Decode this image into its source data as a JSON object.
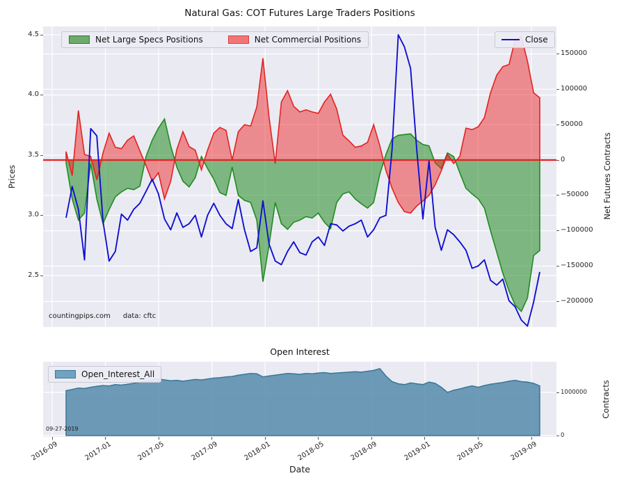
{
  "accent_colors": {
    "specs_fill": "rgba(34,139,34,0.55)",
    "specs_edge": "#1f8c1f",
    "commercials_fill": "rgba(235,44,44,0.50)",
    "commercials_edge": "#e32222",
    "zero_line": "#e32222",
    "close_line": "#1010d0",
    "oi_fill": "rgba(70,130,165,0.78)",
    "oi_edge": "#3a7699",
    "axes_background": "#eaeaf2",
    "grid": "#ffffff"
  },
  "chart_data": [
    {
      "type": "area",
      "title": "Natural Gas: COT Futures Large Traders Positions",
      "xlabel": "Date",
      "ylabel_left": "Prices",
      "ylabel_right": "Net Futures Contracts",
      "watermark": "countingpips.com",
      "source": "data: cftc",
      "legend_position": "upper left / upper right",
      "grid": true,
      "x_start_year": 2016.754,
      "x_end_year": 2019.719,
      "x_tick_labels": [
        "2016-09",
        "2017-01",
        "2017-05",
        "2017-09",
        "2018-01",
        "2018-05",
        "2018-09",
        "2019-01",
        "2019-05",
        "2019-09"
      ],
      "x_tick_years": [
        2016.6667,
        2017.0,
        2017.3333,
        2017.6667,
        2018.0,
        2018.3333,
        2018.6667,
        2019.0,
        2019.3333,
        2019.6667
      ],
      "ylim_left": [
        2.07,
        4.57
      ],
      "ylim_right": [
        -236000,
        189000
      ],
      "y_ticks_left": [
        4.5,
        4.0,
        3.5,
        3.0,
        2.5
      ],
      "y_tick_labels_left": [
        "4.5",
        "4.0",
        "3.5",
        "3.0",
        "2.5"
      ],
      "y_ticks_right": [
        150000,
        100000,
        50000,
        0,
        -50000,
        -100000,
        -150000,
        -200000
      ],
      "y_tick_labels_right": [
        "150000",
        "100000",
        "50000",
        "0",
        "−50000",
        "−100000",
        "−150000",
        "−200000"
      ],
      "series": [
        {
          "name": "Net Large Specs Positions",
          "type": "area",
          "axis": "right",
          "color": "green",
          "values": [
            -4000,
            -55000,
            -85000,
            -75000,
            -5000,
            -55000,
            -90000,
            -70000,
            -52000,
            -45000,
            -40000,
            -42000,
            -37000,
            5000,
            28000,
            45000,
            58000,
            20000,
            -10000,
            -30000,
            -38000,
            -25000,
            5000,
            -12000,
            -27000,
            -46000,
            -50000,
            -10000,
            -50000,
            -57000,
            -60000,
            -85000,
            -172000,
            -120000,
            -60000,
            -90000,
            -98000,
            -88000,
            -85000,
            -80000,
            -82000,
            -75000,
            -88000,
            -97000,
            -60000,
            -48000,
            -45000,
            -55000,
            -62000,
            -68000,
            -60000,
            -20000,
            8000,
            30000,
            35000,
            36000,
            37000,
            28000,
            22000,
            20000,
            -4000,
            -12000,
            10000,
            5000,
            -18000,
            -40000,
            -48000,
            -55000,
            -68000,
            -100000,
            -130000,
            -160000,
            -185000,
            -205000,
            -214000,
            -195000,
            -135000,
            -128000
          ]
        },
        {
          "name": "Net Commercial Positions",
          "type": "area",
          "axis": "right",
          "color": "red",
          "values": [
            12000,
            -22000,
            70000,
            8000,
            5000,
            -28000,
            10000,
            38000,
            18000,
            16000,
            28000,
            34000,
            13000,
            -8000,
            -30000,
            -18000,
            -55000,
            -30000,
            15000,
            40000,
            19000,
            14000,
            -14000,
            14000,
            38000,
            46000,
            42000,
            0,
            40000,
            50000,
            48000,
            75000,
            144000,
            60000,
            -5000,
            82000,
            98000,
            76000,
            68000,
            71000,
            68000,
            66000,
            82000,
            93000,
            72000,
            35000,
            27000,
            18000,
            20000,
            25000,
            50000,
            20000,
            -15000,
            -40000,
            -60000,
            -73000,
            -75000,
            -65000,
            -58000,
            -50000,
            -35000,
            -15000,
            8000,
            -5000,
            5000,
            45000,
            43000,
            47000,
            60000,
            95000,
            120000,
            132000,
            135000,
            170000,
            174000,
            140000,
            95000,
            88000
          ]
        },
        {
          "name": "Close",
          "type": "line",
          "axis": "left",
          "color": "blue",
          "values": [
            2.98,
            3.24,
            3.05,
            2.63,
            3.72,
            3.66,
            2.95,
            2.62,
            2.7,
            3.01,
            2.96,
            3.05,
            3.1,
            3.2,
            3.3,
            3.18,
            2.97,
            2.88,
            3.02,
            2.9,
            2.93,
            3.0,
            2.82,
            3.0,
            3.1,
            3.0,
            2.93,
            2.89,
            3.13,
            2.88,
            2.7,
            2.73,
            3.12,
            2.76,
            2.62,
            2.59,
            2.7,
            2.78,
            2.69,
            2.67,
            2.78,
            2.82,
            2.75,
            2.93,
            2.92,
            2.87,
            2.91,
            2.93,
            2.96,
            2.82,
            2.88,
            2.98,
            3.0,
            3.55,
            4.5,
            4.4,
            4.22,
            3.55,
            2.97,
            3.45,
            2.9,
            2.71,
            2.88,
            2.84,
            2.78,
            2.71,
            2.56,
            2.58,
            2.63,
            2.46,
            2.42,
            2.47,
            2.29,
            2.24,
            2.13,
            2.08,
            2.28,
            2.53
          ]
        }
      ]
    },
    {
      "type": "area",
      "title": "Open Interest",
      "legend": "Open_Interest_All",
      "ylabel_right": "Contracts",
      "annotation": "09-27-2019",
      "grid": true,
      "x_start_year": 2016.754,
      "x_end_year": 2019.719,
      "ylim": [
        0,
        1710000
      ],
      "y_ticks": [
        0,
        1000000
      ],
      "y_tick_labels": [
        "0",
        "1000000"
      ],
      "values": [
        1040000,
        1070000,
        1100000,
        1090000,
        1120000,
        1140000,
        1160000,
        1150000,
        1180000,
        1170000,
        1190000,
        1210000,
        1240000,
        1260000,
        1290000,
        1310000,
        1290000,
        1270000,
        1280000,
        1260000,
        1280000,
        1300000,
        1290000,
        1310000,
        1330000,
        1340000,
        1360000,
        1370000,
        1400000,
        1420000,
        1440000,
        1430000,
        1360000,
        1380000,
        1400000,
        1420000,
        1440000,
        1430000,
        1420000,
        1440000,
        1430000,
        1450000,
        1460000,
        1440000,
        1450000,
        1460000,
        1470000,
        1480000,
        1470000,
        1490000,
        1510000,
        1550000,
        1380000,
        1250000,
        1200000,
        1180000,
        1220000,
        1200000,
        1180000,
        1240000,
        1210000,
        1120000,
        1000000,
        1050000,
        1080000,
        1120000,
        1150000,
        1120000,
        1160000,
        1190000,
        1210000,
        1230000,
        1260000,
        1280000,
        1250000,
        1240000,
        1210000,
        1150000
      ]
    }
  ]
}
